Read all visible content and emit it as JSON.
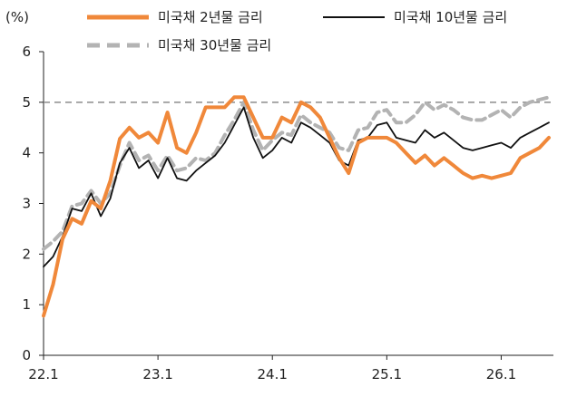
{
  "chart_data": {
    "type": "line",
    "unit": "(%)",
    "xlabel": "",
    "ylabel": "",
    "ylim": [
      0,
      6
    ],
    "yticks": [
      "0",
      "1",
      "2",
      "3",
      "4",
      "5",
      "6"
    ],
    "xticks": [
      "22.1",
      "23.1",
      "24.1",
      "25.1",
      "26.1"
    ],
    "xrange": [
      "2022.01",
      "2026.06"
    ],
    "reference_line": {
      "y": 5,
      "style": "dashed",
      "color": "#8c8c8c"
    },
    "grid": false,
    "legend_position": "top",
    "series": [
      {
        "name": "미국채 2년물 금리",
        "color": "#f0883a",
        "style": "solid",
        "x": [
          "2022-01",
          "2022-02",
          "2022-03",
          "2022-04",
          "2022-05",
          "2022-06",
          "2022-07",
          "2022-08",
          "2022-09",
          "2022-10",
          "2022-11",
          "2022-12",
          "2023-01",
          "2023-02",
          "2023-03",
          "2023-04",
          "2023-05",
          "2023-06",
          "2023-07",
          "2023-08",
          "2023-09",
          "2023-10",
          "2023-11",
          "2023-12",
          "2024-01",
          "2024-02",
          "2024-03",
          "2024-04",
          "2024-05",
          "2024-06",
          "2024-07",
          "2024-08",
          "2024-09",
          "2024-10",
          "2024-11",
          "2024-12",
          "2025-01",
          "2025-02",
          "2025-03",
          "2025-04",
          "2025-05",
          "2025-06",
          "2025-07",
          "2025-08",
          "2025-09",
          "2025-10",
          "2025-11",
          "2025-12",
          "2026-01",
          "2026-02",
          "2026-03",
          "2026-04",
          "2026-05",
          "2026-06"
        ],
        "values": [
          0.78,
          1.4,
          2.3,
          2.7,
          2.6,
          3.05,
          2.9,
          3.45,
          4.28,
          4.5,
          4.3,
          4.4,
          4.2,
          4.8,
          4.1,
          4.0,
          4.4,
          4.9,
          4.9,
          4.9,
          5.1,
          5.1,
          4.7,
          4.3,
          4.3,
          4.7,
          4.6,
          5.0,
          4.9,
          4.7,
          4.3,
          3.9,
          3.6,
          4.2,
          4.3,
          4.3,
          4.3,
          4.2,
          4.0,
          3.8,
          3.95,
          3.75,
          3.9,
          3.75,
          3.6,
          3.5,
          3.55,
          3.5,
          3.55,
          3.6,
          3.9,
          4.0,
          4.1,
          4.3
        ]
      },
      {
        "name": "미국채 10년물 금리",
        "color": "#111111",
        "style": "solid",
        "x": [
          "2022-01",
          "2022-02",
          "2022-03",
          "2022-04",
          "2022-05",
          "2022-06",
          "2022-07",
          "2022-08",
          "2022-09",
          "2022-10",
          "2022-11",
          "2022-12",
          "2023-01",
          "2023-02",
          "2023-03",
          "2023-04",
          "2023-05",
          "2023-06",
          "2023-07",
          "2023-08",
          "2023-09",
          "2023-10",
          "2023-11",
          "2023-12",
          "2024-01",
          "2024-02",
          "2024-03",
          "2024-04",
          "2024-05",
          "2024-06",
          "2024-07",
          "2024-08",
          "2024-09",
          "2024-10",
          "2024-11",
          "2024-12",
          "2025-01",
          "2025-02",
          "2025-03",
          "2025-04",
          "2025-05",
          "2025-06",
          "2025-07",
          "2025-08",
          "2025-09",
          "2025-10",
          "2025-11",
          "2025-12",
          "2026-01",
          "2026-02",
          "2026-03",
          "2026-04",
          "2026-05",
          "2026-06"
        ],
        "values": [
          1.75,
          1.95,
          2.35,
          2.9,
          2.85,
          3.2,
          2.75,
          3.1,
          3.8,
          4.1,
          3.7,
          3.85,
          3.5,
          3.9,
          3.5,
          3.45,
          3.65,
          3.8,
          3.95,
          4.2,
          4.55,
          4.9,
          4.3,
          3.9,
          4.05,
          4.3,
          4.2,
          4.6,
          4.5,
          4.35,
          4.2,
          3.85,
          3.75,
          4.25,
          4.3,
          4.55,
          4.6,
          4.3,
          4.25,
          4.2,
          4.45,
          4.3,
          4.4,
          4.25,
          4.1,
          4.05,
          4.1,
          4.15,
          4.2,
          4.1,
          4.3,
          4.4,
          4.5,
          4.6
        ]
      },
      {
        "name": "미국채 30년물 금리",
        "color": "#b3b3b3",
        "style": "dashed",
        "x": [
          "2022-01",
          "2022-02",
          "2022-03",
          "2022-04",
          "2022-05",
          "2022-06",
          "2022-07",
          "2022-08",
          "2022-09",
          "2022-10",
          "2022-11",
          "2022-12",
          "2023-01",
          "2023-02",
          "2023-03",
          "2023-04",
          "2023-05",
          "2023-06",
          "2023-07",
          "2023-08",
          "2023-09",
          "2023-10",
          "2023-11",
          "2023-12",
          "2024-01",
          "2024-02",
          "2024-03",
          "2024-04",
          "2024-05",
          "2024-06",
          "2024-07",
          "2024-08",
          "2024-09",
          "2024-10",
          "2024-11",
          "2024-12",
          "2025-01",
          "2025-02",
          "2025-03",
          "2025-04",
          "2025-05",
          "2025-06",
          "2025-07",
          "2025-08",
          "2025-09",
          "2025-10",
          "2025-11",
          "2025-12",
          "2026-01",
          "2026-02",
          "2026-03",
          "2026-04",
          "2026-05",
          "2026-06"
        ],
        "values": [
          2.1,
          2.25,
          2.45,
          2.95,
          3.0,
          3.25,
          3.0,
          3.2,
          3.75,
          4.2,
          3.85,
          3.95,
          3.65,
          3.95,
          3.65,
          3.7,
          3.9,
          3.85,
          4.0,
          4.35,
          4.65,
          5.0,
          4.45,
          4.05,
          4.25,
          4.4,
          4.35,
          4.75,
          4.6,
          4.5,
          4.4,
          4.1,
          4.05,
          4.45,
          4.5,
          4.8,
          4.85,
          4.6,
          4.6,
          4.75,
          5.0,
          4.85,
          4.95,
          4.85,
          4.7,
          4.65,
          4.65,
          4.75,
          4.85,
          4.7,
          4.9,
          5.0,
          5.05,
          5.1
        ]
      }
    ]
  }
}
